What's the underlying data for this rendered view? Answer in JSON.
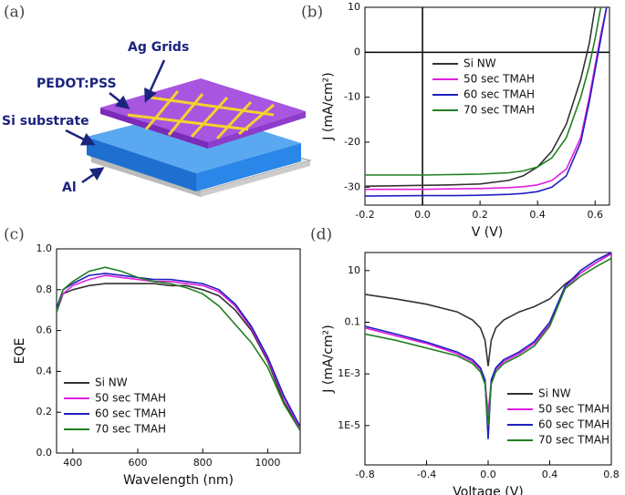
{
  "panel_labels": [
    "(a)",
    "(b)",
    "(c)",
    "(d)"
  ],
  "diagram": {
    "labels": [
      "Ag Grids",
      "PEDOT:PSS",
      "Si substrate",
      "Al"
    ]
  },
  "chart_data": [
    {
      "type": "line",
      "xlabel": "V (V)",
      "ylabel": "J (mA/cm²)",
      "x": [
        -0.2,
        0,
        0.1,
        0.2,
        0.3,
        0.35,
        0.4,
        0.45,
        0.5,
        0.55,
        0.58,
        0.6,
        0.62,
        0.64
      ],
      "xlim": [
        -0.2,
        0.65
      ],
      "ylim": [
        -34,
        10
      ],
      "xticks": [
        -0.2,
        {
          "value": 0,
          "label": "0.0"
        },
        0.2,
        0.4,
        0.6
      ],
      "yticks": [
        -30,
        -20,
        -10,
        0,
        10
      ],
      "series": [
        {
          "name": "Si NW",
          "color": "#333333",
          "values": [
            -29.8,
            -29.6,
            -29.5,
            -29.3,
            -28.5,
            -27.5,
            -25.5,
            -22,
            -16,
            -6,
            2,
            10,
            null,
            null
          ]
        },
        {
          "name": "50 sec TMAH",
          "color": "#e020e0",
          "values": [
            -30.5,
            -30.5,
            -30.4,
            -30.3,
            -30.1,
            -29.9,
            -29.5,
            -28.5,
            -26,
            -19,
            -10,
            -3,
            4,
            10
          ]
        },
        {
          "name": "60 sec TMAH",
          "color": "#2020c0",
          "values": [
            -32,
            -31.9,
            -31.9,
            -31.8,
            -31.6,
            -31.4,
            -31,
            -30,
            -27.5,
            -20,
            -11,
            -4,
            3,
            10
          ]
        },
        {
          "name": "70 sec TMAH",
          "color": "#208020",
          "values": [
            -27.3,
            -27.3,
            -27.2,
            -27.1,
            -26.8,
            -26.4,
            -25.5,
            -23.5,
            -19,
            -10,
            -3,
            3,
            10,
            null
          ]
        }
      ]
    },
    {
      "type": "line",
      "xlabel": "Wavelength (nm)",
      "ylabel": "EQE",
      "x": [
        350,
        370,
        400,
        450,
        500,
        550,
        600,
        650,
        700,
        750,
        800,
        850,
        900,
        950,
        1000,
        1050,
        1100
      ],
      "xlim": [
        350,
        1100
      ],
      "ylim": [
        0,
        1
      ],
      "xticks": [
        400,
        600,
        800,
        1000
      ],
      "yticks": [
        {
          "value": 0,
          "label": "0.0"
        },
        {
          "value": 0.2,
          "label": "0.2"
        },
        {
          "value": 0.4,
          "label": "0.4"
        },
        {
          "value": 0.6,
          "label": "0.6"
        },
        {
          "value": 0.8,
          "label": "0.8"
        },
        {
          "value": 1,
          "label": "1.0"
        }
      ],
      "series": [
        {
          "name": "Si NW",
          "color": "#333333",
          "values": [
            0.69,
            0.78,
            0.8,
            0.82,
            0.83,
            0.83,
            0.83,
            0.83,
            0.82,
            0.82,
            0.8,
            0.77,
            0.7,
            0.6,
            0.45,
            0.25,
            0.12
          ]
        },
        {
          "name": "50 sec TMAH",
          "color": "#e020e0",
          "values": [
            0.7,
            0.78,
            0.82,
            0.85,
            0.87,
            0.86,
            0.85,
            0.84,
            0.84,
            0.83,
            0.82,
            0.79,
            0.72,
            0.61,
            0.46,
            0.27,
            0.12
          ]
        },
        {
          "name": "60 sec TMAH",
          "color": "#2020c0",
          "values": [
            0.71,
            0.8,
            0.83,
            0.87,
            0.88,
            0.87,
            0.86,
            0.85,
            0.85,
            0.84,
            0.83,
            0.8,
            0.73,
            0.62,
            0.47,
            0.28,
            0.13
          ]
        },
        {
          "name": "70 sec TMAH",
          "color": "#208020",
          "values": [
            0.69,
            0.8,
            0.84,
            0.89,
            0.91,
            0.89,
            0.86,
            0.84,
            0.83,
            0.81,
            0.78,
            0.72,
            0.63,
            0.54,
            0.42,
            0.24,
            0.11
          ]
        }
      ]
    },
    {
      "type": "line",
      "xlabel": "Voltage (V)",
      "ylabel": "J (mA/cm²)",
      "ylog": true,
      "x": [
        -0.8,
        -0.6,
        -0.4,
        -0.2,
        -0.1,
        -0.05,
        -0.02,
        0,
        0.02,
        0.05,
        0.1,
        0.2,
        0.3,
        0.4,
        0.5,
        0.6,
        0.7,
        0.8
      ],
      "xlim": [
        -0.8,
        0.8
      ],
      "ylim": [
        3e-07,
        50
      ],
      "xticks": [
        -0.8,
        -0.4,
        {
          "value": 0,
          "label": "0.0"
        },
        0.4,
        0.8
      ],
      "yticks": [
        10,
        0.1,
        {
          "value": 0.001,
          "label": "1E-3"
        },
        {
          "value": 1e-05,
          "label": "1E-5"
        }
      ],
      "series": [
        {
          "name": "Si NW",
          "color": "#333333",
          "values": [
            1.2,
            0.8,
            0.5,
            0.25,
            0.12,
            0.06,
            0.02,
            0.002,
            0.02,
            0.06,
            0.12,
            0.25,
            0.4,
            0.8,
            3,
            8,
            20,
            45
          ]
        },
        {
          "name": "50 sec TMAH",
          "color": "#e020e0",
          "values": [
            0.06,
            0.03,
            0.015,
            0.006,
            0.003,
            0.0015,
            0.0005,
            3e-05,
            0.0005,
            0.0015,
            0.003,
            0.006,
            0.015,
            0.08,
            2,
            8,
            20,
            45
          ]
        },
        {
          "name": "60 sec TMAH",
          "color": "#2020c0",
          "values": [
            0.07,
            0.035,
            0.017,
            0.007,
            0.0035,
            0.0017,
            0.0006,
            3e-06,
            0.0006,
            0.0017,
            0.0035,
            0.007,
            0.018,
            0.1,
            2.5,
            10,
            25,
            50
          ]
        },
        {
          "name": "70 sec TMAH",
          "color": "#208020",
          "values": [
            0.035,
            0.02,
            0.01,
            0.005,
            0.0025,
            0.0012,
            0.0004,
            1e-05,
            0.0004,
            0.0012,
            0.0025,
            0.005,
            0.012,
            0.07,
            2,
            6,
            14,
            30
          ]
        }
      ]
    }
  ]
}
